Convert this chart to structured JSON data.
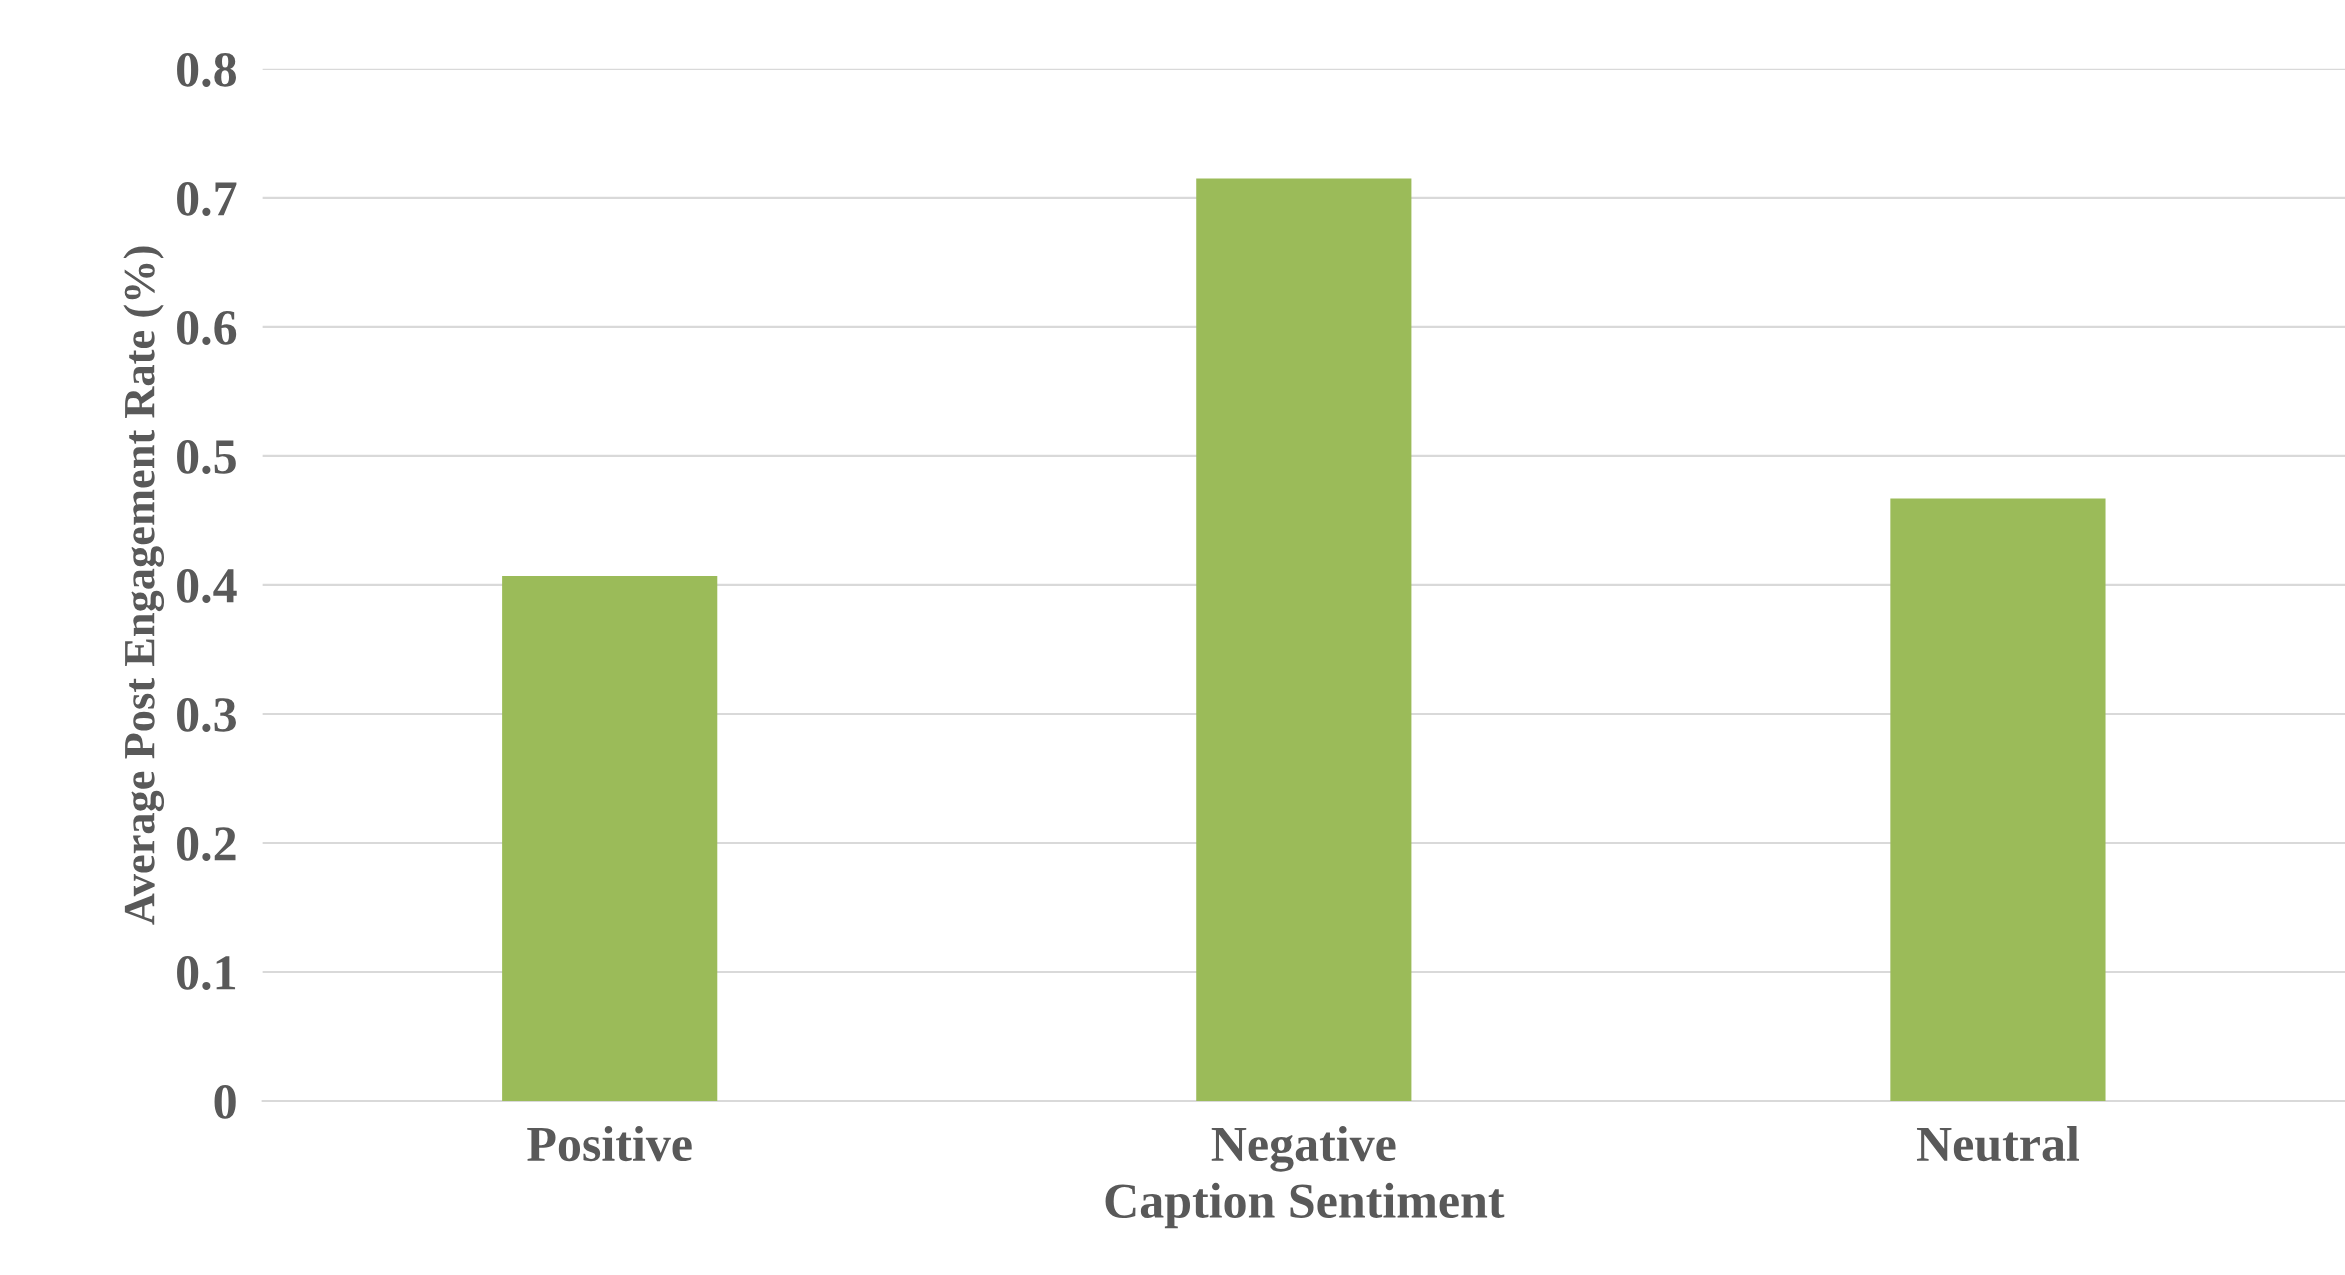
{
  "chart_data": {
    "type": "bar",
    "categories": [
      "Positive",
      "Negative",
      "Neutral"
    ],
    "values": [
      0.407,
      0.715,
      0.467
    ],
    "color": "#9bbb59",
    "xlabel": "Caption Sentiment",
    "ylabel": "Average Post Engagement Rate (%)",
    "ylim": [
      0,
      0.8
    ],
    "yticks": [
      0,
      0.1,
      0.2,
      0.3,
      0.4,
      0.5,
      0.6,
      0.7,
      0.8
    ],
    "grid": "y",
    "legend": false
  }
}
